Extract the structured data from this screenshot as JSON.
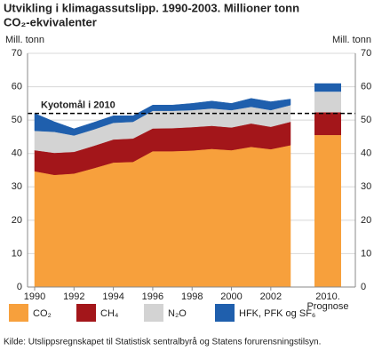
{
  "chart_data": {
    "type": "area",
    "title": [
      "Utvikling i klimagassutslipp. 1990-2003. Millioner tonn",
      "CO₂-ekvivalenter"
    ],
    "y_label": "Mill. tonn",
    "x": [
      1990,
      1991,
      1992,
      1993,
      1994,
      1995,
      1996,
      1997,
      1998,
      1999,
      2000,
      2001,
      2002,
      2003
    ],
    "xlim": [
      1990,
      2003
    ],
    "xticks": [
      1990,
      1992,
      1994,
      1996,
      1998,
      2000,
      2002
    ],
    "ylim": [
      0,
      70
    ],
    "yticks": [
      0,
      10,
      20,
      30,
      40,
      50,
      60,
      70
    ],
    "grid": true,
    "stacked": true,
    "series": [
      {
        "name": "CO₂",
        "color": "#f7a03c",
        "values": [
          34.7,
          33.6,
          34.0,
          35.6,
          37.3,
          37.5,
          40.7,
          40.7,
          40.9,
          41.4,
          41.0,
          42.0,
          41.3,
          42.5
        ],
        "prognosis": 45.5
      },
      {
        "name": "CH₄",
        "color": "#a3161a",
        "values": [
          6.3,
          6.6,
          6.5,
          6.7,
          6.9,
          7.0,
          6.8,
          6.9,
          7.0,
          6.9,
          6.8,
          7.0,
          6.7,
          7.0
        ],
        "prognosis": 6.8
      },
      {
        "name": "N₂O",
        "color": "#d3d3d3",
        "values": [
          5.8,
          6.3,
          4.9,
          4.9,
          5.0,
          5.0,
          5.3,
          5.2,
          5.1,
          5.2,
          5.2,
          5.0,
          5.0,
          5.0
        ],
        "prognosis": 6.2
      },
      {
        "name": "HFK, PFK og SF₆",
        "color": "#1f5fad",
        "values": [
          5.2,
          3.0,
          2.0,
          2.1,
          2.1,
          1.8,
          1.7,
          1.7,
          2.0,
          2.2,
          2.0,
          2.5,
          2.5,
          1.8
        ],
        "prognosis": 2.5
      }
    ],
    "prognosis_label": [
      "2010.",
      "Prognose"
    ],
    "reference_line": {
      "label": "Kyotomål i 2010",
      "value": 52
    },
    "source": "Kilde: Utslippsregnskapet til Statistisk sentralbyrå og Statens forurensningstilsyn."
  }
}
